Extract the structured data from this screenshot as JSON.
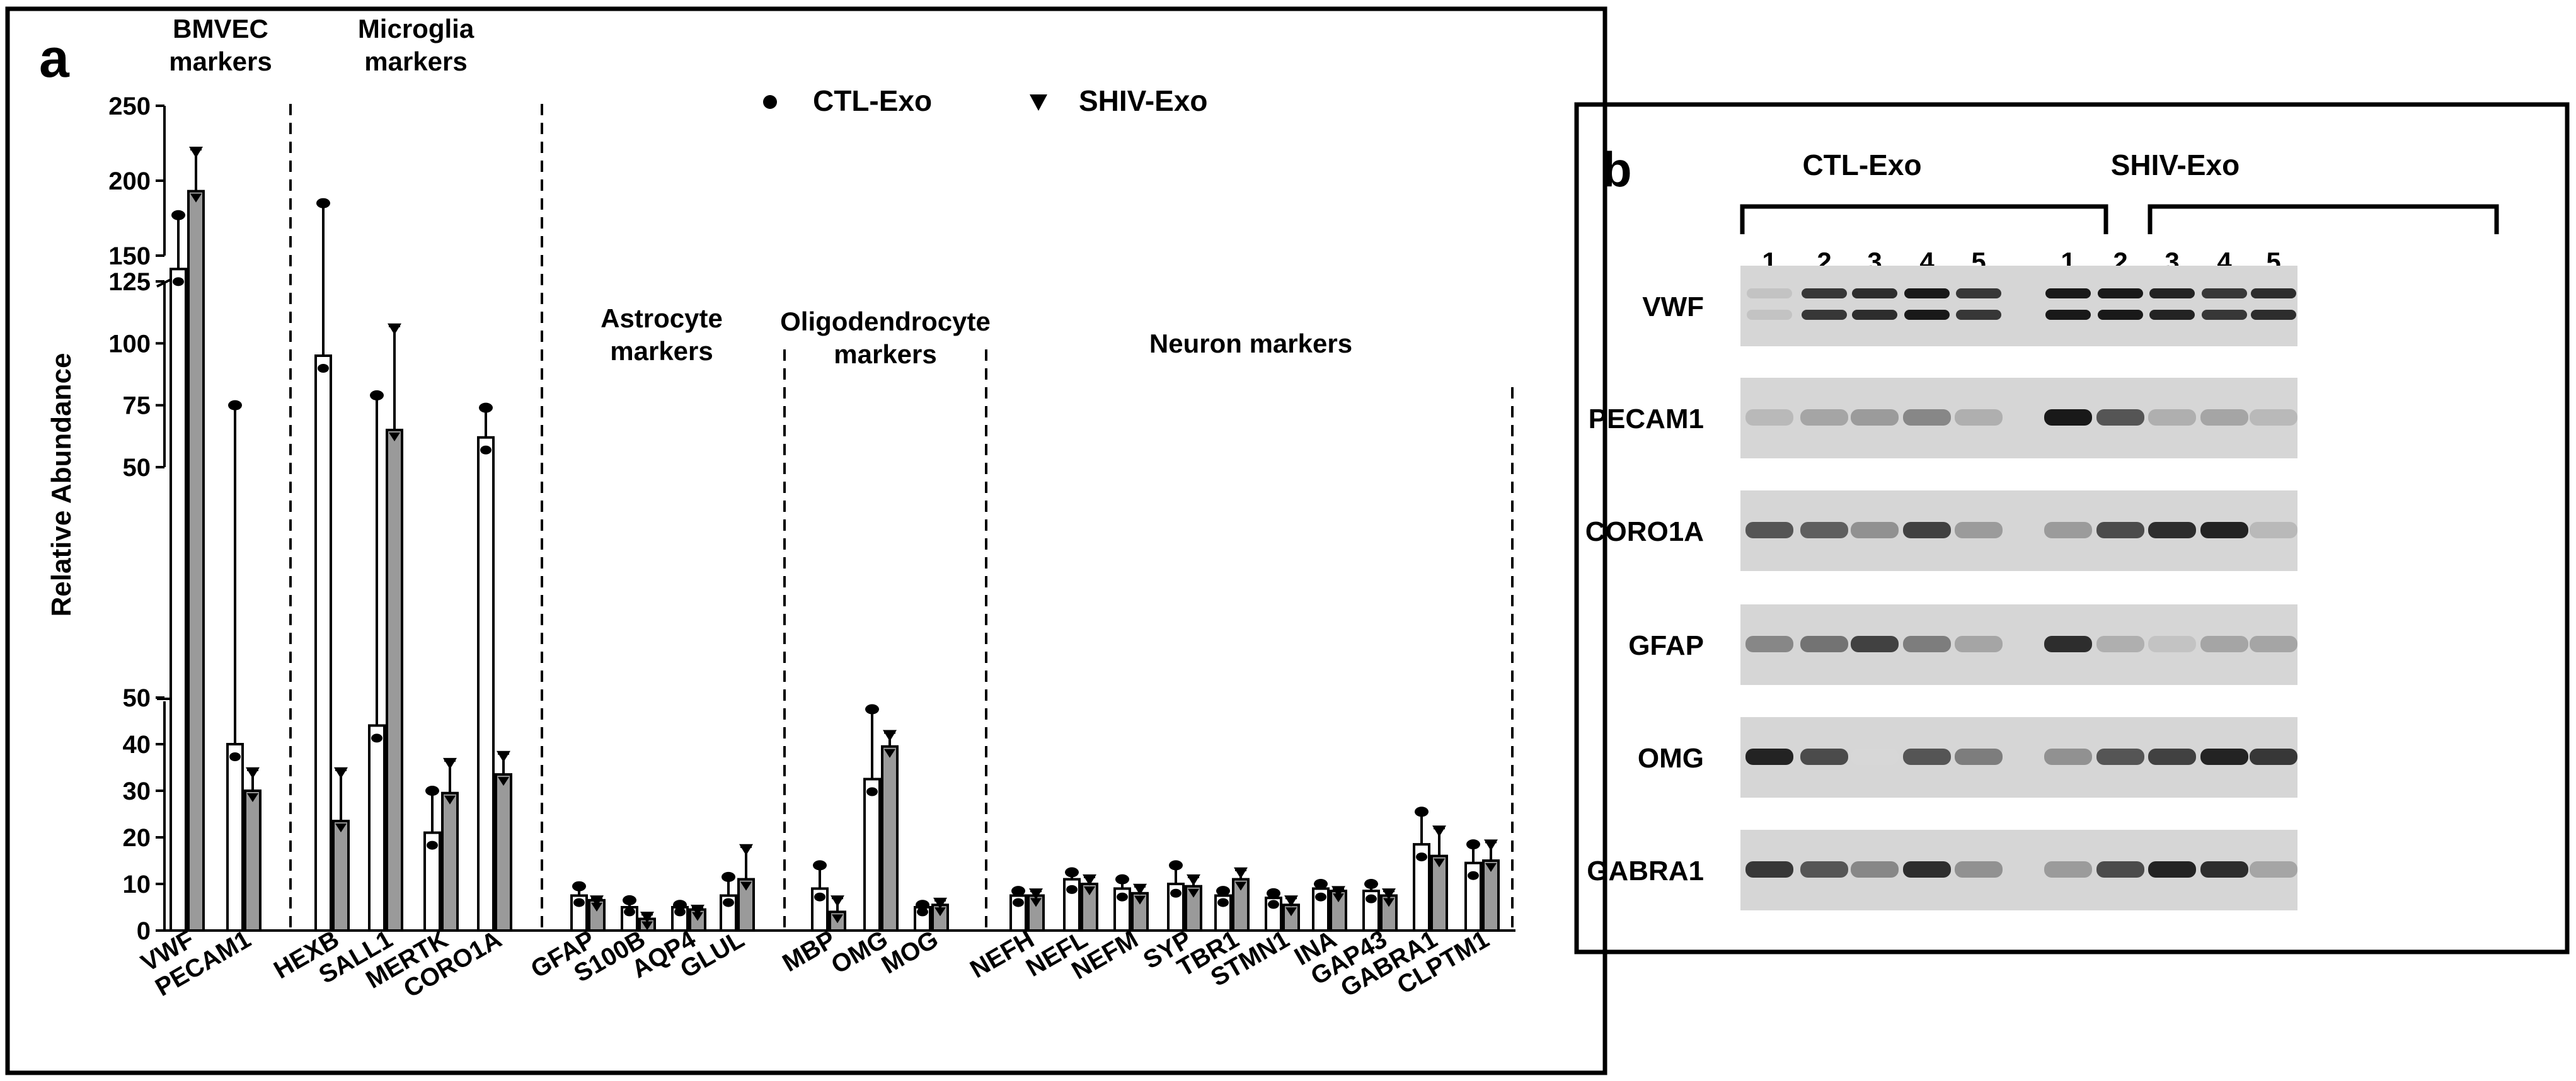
{
  "panel_a": {
    "label": "a",
    "groups": [
      {
        "label": "BMVEC\nmarkers"
      },
      {
        "label": "Microglia\nmarkers"
      },
      {
        "label": "Astrocyte\nmarkers"
      },
      {
        "label": "Oligodendrocyte\nmarkers"
      },
      {
        "label": "Neuron markers"
      }
    ],
    "legend": [
      {
        "name": "CTL-Exo",
        "marker": "circle"
      },
      {
        "name": "SHIV-Exo",
        "marker": "triangle-down"
      }
    ]
  },
  "chart_data": {
    "type": "bar",
    "title": "",
    "xlabel": "",
    "ylabel": "Relative Abundance",
    "y_axis_break": [
      50,
      150
    ],
    "yticks_lower": [
      0,
      10,
      20,
      30,
      40,
      50
    ],
    "yticks_middle": [
      50,
      75,
      100,
      125
    ],
    "yticks_upper": [
      150,
      200,
      250
    ],
    "categories": [
      "VWF",
      "PECAM1",
      "HEXB",
      "SALL1",
      "MERTK",
      "CORO1A",
      "GFAP",
      "S100B",
      "AQP4",
      "GLUL",
      "MBP",
      "OMG",
      "MOG",
      "NEFH",
      "NEFL",
      "NEFM",
      "SYP",
      "TBR1",
      "STMN1",
      "INA",
      "GAP43",
      "GABRA1",
      "CLPTM1"
    ],
    "series": [
      {
        "name": "CTL-Exo",
        "values": [
          137,
          40,
          95,
          44,
          21,
          62,
          7.5,
          5,
          5,
          7.5,
          9,
          32.5,
          5,
          7.5,
          11,
          9,
          10,
          7.5,
          7,
          9,
          8.5,
          18.5,
          14.5
        ],
        "errors": [
          40,
          35,
          90,
          35,
          9,
          12,
          2,
          1.5,
          0.5,
          4,
          5,
          15,
          0.5,
          1,
          1.5,
          2,
          4,
          1,
          1,
          1,
          1.5,
          7,
          4
        ]
      },
      {
        "name": "SHIV-Exo",
        "values": [
          193,
          30,
          23.5,
          65,
          29.5,
          33.5,
          6.5,
          2.5,
          4.5,
          11,
          4,
          39.5,
          5.5,
          7.5,
          10,
          8,
          9.5,
          11,
          5.5,
          8.5,
          7.5,
          16,
          15
        ],
        "errors": [
          28,
          4.5,
          11,
          42,
          7,
          4.5,
          0.5,
          1,
          0.5,
          7,
          3,
          3,
          1,
          1,
          1.5,
          1.5,
          2,
          2,
          1.5,
          0.5,
          1,
          6,
          4
        ]
      }
    ],
    "group_dividers_after": [
      "PECAM1",
      "CORO1A",
      "GLUL",
      "MOG",
      "CLPTM1"
    ]
  },
  "panel_b": {
    "label": "b",
    "group_labels": [
      "CTL-Exo",
      "SHIV-Exo"
    ],
    "lane_numbers": [
      "1",
      "2",
      "3",
      "4",
      "5",
      "1",
      "2",
      "3",
      "4",
      "5"
    ],
    "rows": [
      {
        "label": "VWF",
        "intensities": [
          0.15,
          0.85,
          0.9,
          1.0,
          0.85,
          1.0,
          1.0,
          0.95,
          0.85,
          0.9
        ],
        "double": true
      },
      {
        "label": "PECAM1",
        "intensities": [
          0.2,
          0.3,
          0.35,
          0.45,
          0.25,
          1.0,
          0.7,
          0.25,
          0.3,
          0.2
        ],
        "double": false
      },
      {
        "label": "CORO1A",
        "intensities": [
          0.7,
          0.65,
          0.4,
          0.8,
          0.35,
          0.35,
          0.75,
          0.9,
          0.95,
          0.2
        ],
        "double": false
      },
      {
        "label": "GFAP",
        "intensities": [
          0.45,
          0.55,
          0.8,
          0.5,
          0.3,
          0.9,
          0.25,
          0.15,
          0.3,
          0.3
        ],
        "double": false
      },
      {
        "label": "OMG",
        "intensities": [
          0.95,
          0.75,
          0.05,
          0.7,
          0.5,
          0.4,
          0.7,
          0.8,
          0.95,
          0.85
        ],
        "double": false
      },
      {
        "label": "GABRA1",
        "intensities": [
          0.85,
          0.7,
          0.45,
          0.9,
          0.4,
          0.35,
          0.75,
          0.95,
          0.9,
          0.3
        ],
        "double": false
      }
    ]
  }
}
